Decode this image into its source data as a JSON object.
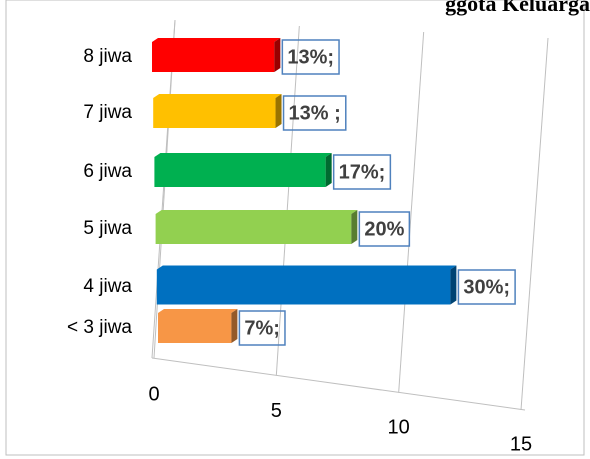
{
  "chart_data": {
    "type": "bar3d_horizontal",
    "title": "ggota Keluarga",
    "categories": [
      "8 jiwa",
      "7 jiwa",
      "6 jiwa",
      "5 jiwa",
      "4 jiwa",
      "< 3 jiwa"
    ],
    "values": [
      5,
      5,
      7,
      8,
      12,
      3
    ],
    "data_labels": [
      "13%;",
      "13% ;",
      "17%;",
      "20%",
      "30%;",
      "7%;"
    ],
    "colors": [
      "#ff0000",
      "#ffc000",
      "#00b050",
      "#92d050",
      "#0070c0",
      "#f79646"
    ],
    "xlim": [
      0,
      15
    ],
    "xticks": [
      0,
      5,
      10,
      15
    ],
    "grid": true
  }
}
